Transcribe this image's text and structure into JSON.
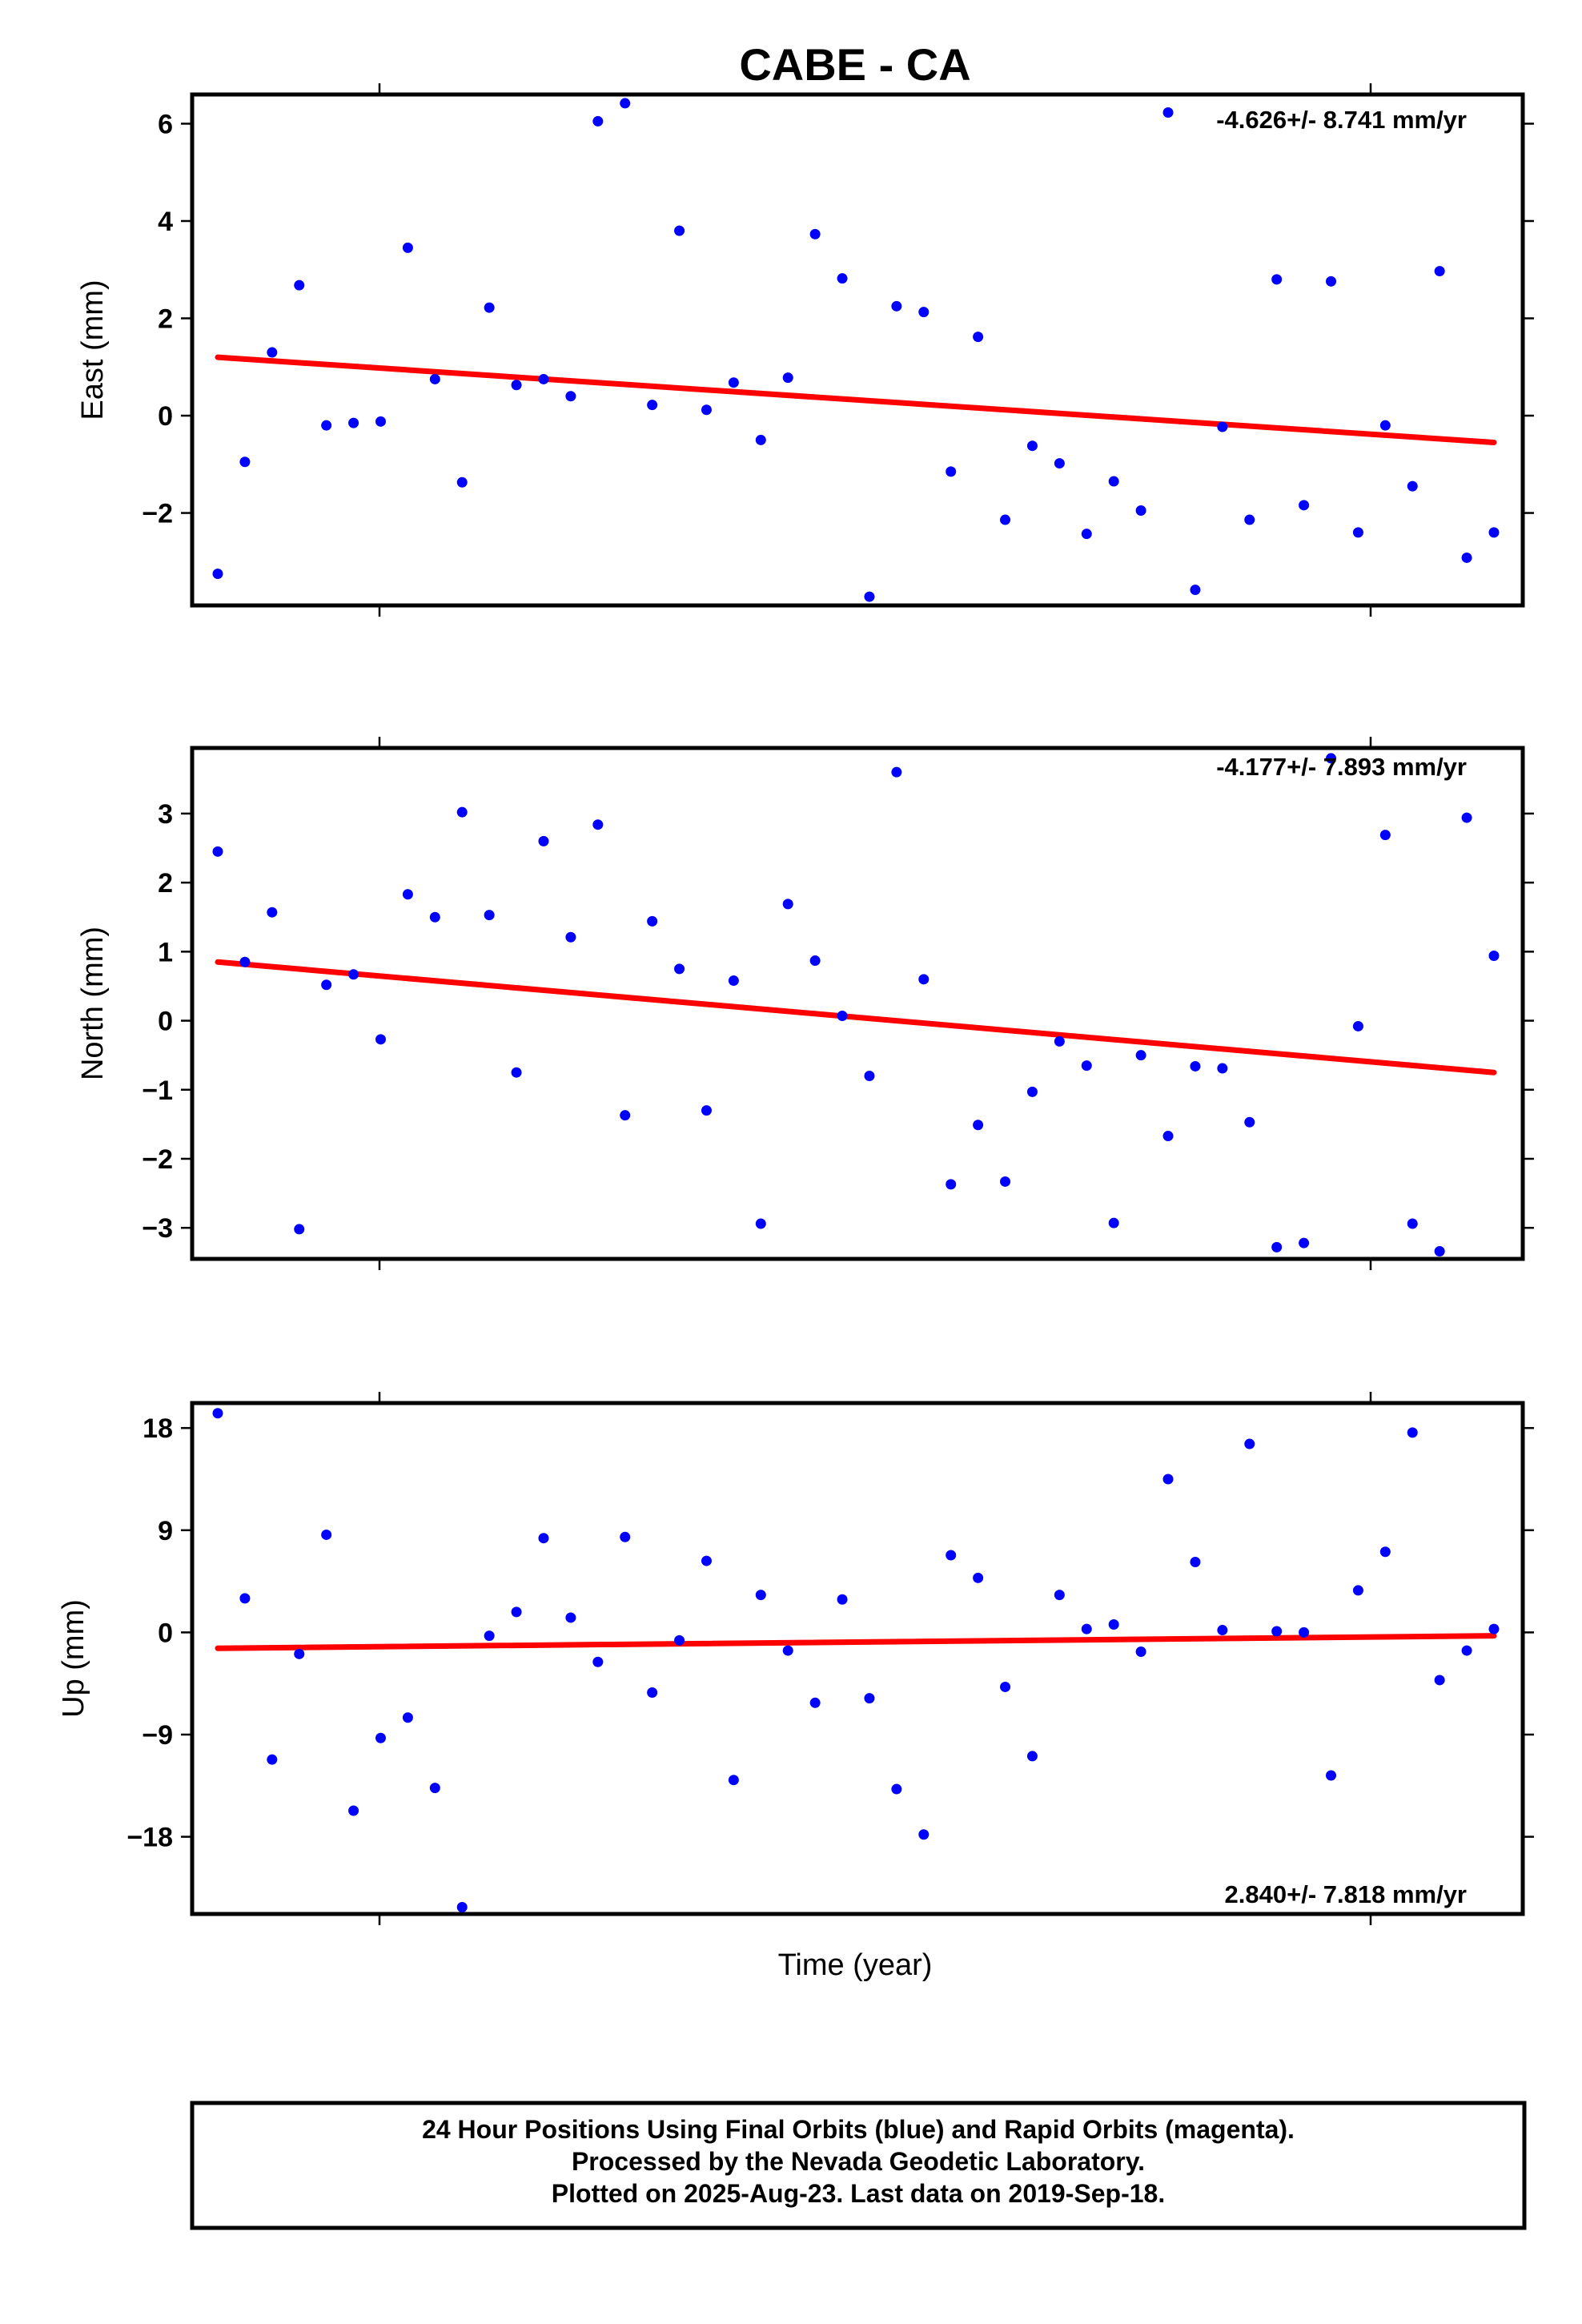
{
  "title": "CABE - CA",
  "xlabel": "Time (year)",
  "footer": {
    "lines": [
      "24 Hour Positions Using Final Orbits (blue) and Rapid Orbits (magenta).",
      "Processed by the Nevada Geodetic Laboratory.",
      "Plotted on 2025-Aug-23. Last data on 2019-Sep-18."
    ]
  },
  "colors": {
    "points": "#0000ff",
    "trend": "#ff0000",
    "frame": "#000000"
  },
  "chart_data": [
    {
      "type": "scatter",
      "ylabel": "East (mm)",
      "rate_label": "-4.626+/- 8.741 mm/yr",
      "ylim": [
        -3.9,
        6.6
      ],
      "yticks": [
        6,
        4,
        2,
        0,
        -2
      ],
      "tick_labels": [
        "6",
        "4",
        "2",
        "0",
        "−2"
      ],
      "grid": false,
      "trend": [
        1.2,
        -0.55
      ],
      "values": [
        -3.25,
        -0.95,
        1.3,
        2.68,
        -0.2,
        -0.15,
        -0.12,
        3.45,
        0.75,
        -1.37,
        2.22,
        0.63,
        0.75,
        0.4,
        6.05,
        6.42,
        0.22,
        3.8,
        0.12,
        0.68,
        -0.5,
        0.78,
        3.73,
        2.82,
        -3.72,
        2.25,
        2.13,
        -1.15,
        1.62,
        -2.14,
        -0.62,
        -0.98,
        -2.43,
        -1.35,
        -1.95,
        6.23,
        -3.58,
        -0.23,
        -2.14,
        2.8,
        -1.84,
        2.76,
        -2.4,
        -0.2,
        -1.45,
        2.97,
        -2.92,
        -2.4
      ]
    },
    {
      "type": "scatter",
      "ylabel": "North (mm)",
      "rate_label": "-4.177+/- 7.893 mm/yr",
      "ylim": [
        -3.45,
        3.95
      ],
      "yticks": [
        3,
        2,
        1,
        0,
        -1,
        -2,
        -3
      ],
      "tick_labels": [
        "3",
        "2",
        "1",
        "0",
        "−1",
        "−2",
        "−3"
      ],
      "grid": false,
      "trend": [
        0.85,
        -0.75
      ],
      "values": [
        2.45,
        0.85,
        1.57,
        -3.02,
        0.52,
        0.67,
        -0.27,
        1.83,
        1.5,
        3.02,
        1.53,
        -0.75,
        2.6,
        1.21,
        2.84,
        -1.37,
        1.44,
        0.75,
        -1.3,
        0.58,
        -2.94,
        1.69,
        0.87,
        0.07,
        -0.8,
        3.6,
        0.6,
        -2.37,
        -1.51,
        -2.33,
        -1.03,
        -0.3,
        -0.65,
        -2.93,
        -0.5,
        -1.67,
        -0.66,
        -0.69,
        -1.47,
        -3.28,
        -3.22,
        3.8,
        -0.08,
        2.69,
        -2.94,
        -3.34,
        2.94,
        0.94
      ]
    },
    {
      "type": "scatter",
      "ylabel": "Up (mm)",
      "rate_label": "2.840+/- 7.818 mm/yr",
      "ylim": [
        -24.8,
        20.2
      ],
      "yticks": [
        18,
        9,
        0,
        -9,
        -18
      ],
      "tick_labels": [
        "18",
        "9",
        "0",
        "−9",
        "−18"
      ],
      "grid": false,
      "trend": [
        -1.4,
        -0.3
      ],
      "values": [
        19.3,
        3.0,
        -11.2,
        -1.9,
        8.6,
        -15.7,
        -9.3,
        -7.5,
        -13.7,
        -24.2,
        -0.3,
        1.8,
        8.3,
        1.3,
        -2.6,
        8.4,
        -5.3,
        -0.7,
        6.3,
        -13.0,
        3.3,
        -1.6,
        -6.2,
        2.9,
        -5.8,
        -13.8,
        -17.8,
        6.8,
        4.8,
        -4.8,
        -10.9,
        3.3,
        0.3,
        0.7,
        -1.7,
        13.5,
        6.2,
        0.2,
        16.6,
        0.1,
        0.0,
        -12.6,
        3.7,
        7.1,
        17.6,
        -4.2,
        -1.6,
        0.3
      ]
    }
  ]
}
